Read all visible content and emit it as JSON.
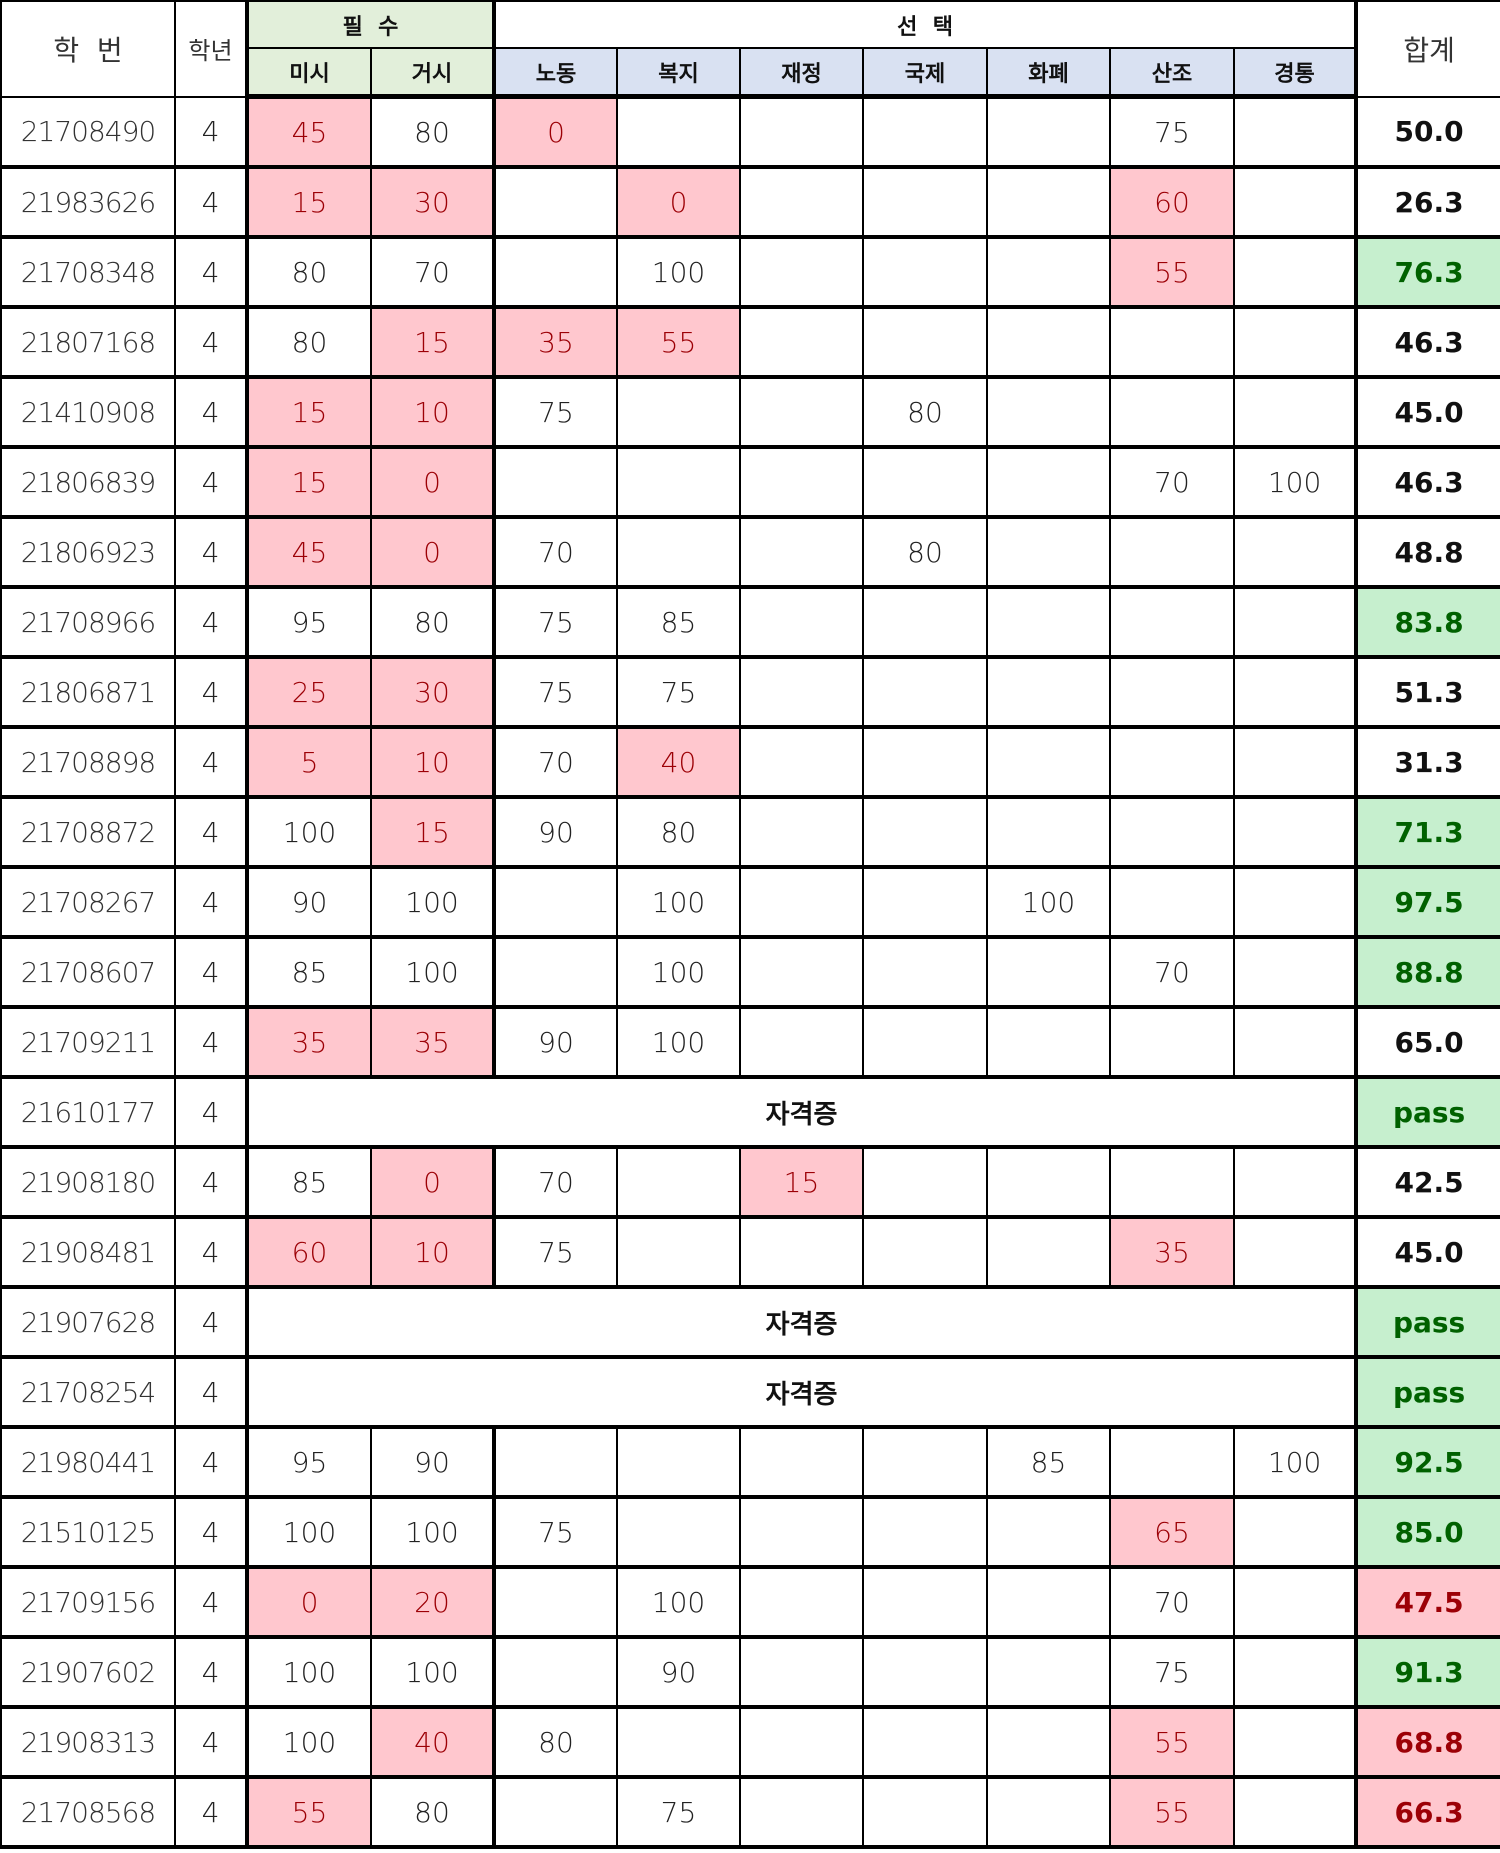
{
  "header": {
    "student_id": "학  번",
    "grade": "학년",
    "required_group": "필  수",
    "elective_group": "선  택",
    "total": "합계",
    "required_subjects": [
      "미시",
      "거시"
    ],
    "elective_subjects": [
      "노동",
      "복지",
      "재정",
      "국제",
      "화폐",
      "산조",
      "경통"
    ]
  },
  "colors": {
    "fail_fill": "#ffc7ce",
    "fail_text": "#9c0006",
    "pass_fill": "#c6efce",
    "pass_text": "#006100",
    "required_header": "#e2efda",
    "elective_header": "#d9e1f2"
  },
  "rows": [
    {
      "id": "21708490",
      "grade": "4",
      "scores": [
        "45",
        "80",
        "0",
        "",
        "",
        "",
        "",
        "75",
        ""
      ],
      "fail": [
        0,
        2
      ],
      "total": "50.0",
      "status": "plain"
    },
    {
      "id": "21983626",
      "grade": "4",
      "scores": [
        "15",
        "30",
        "",
        "0",
        "",
        "",
        "",
        "60",
        ""
      ],
      "fail": [
        0,
        1,
        3,
        7
      ],
      "total": "26.3",
      "status": "plain"
    },
    {
      "id": "21708348",
      "grade": "4",
      "scores": [
        "80",
        "70",
        "",
        "100",
        "",
        "",
        "",
        "55",
        ""
      ],
      "fail": [
        7
      ],
      "total": "76.3",
      "status": "good"
    },
    {
      "id": "21807168",
      "grade": "4",
      "scores": [
        "80",
        "15",
        "35",
        "55",
        "",
        "",
        "",
        "",
        ""
      ],
      "fail": [
        1,
        2,
        3
      ],
      "total": "46.3",
      "status": "plain"
    },
    {
      "id": "21410908",
      "grade": "4",
      "scores": [
        "15",
        "10",
        "75",
        "",
        "",
        "80",
        "",
        "",
        ""
      ],
      "fail": [
        0,
        1
      ],
      "total": "45.0",
      "status": "plain"
    },
    {
      "id": "21806839",
      "grade": "4",
      "scores": [
        "15",
        "0",
        "",
        "",
        "",
        "",
        "",
        "70",
        "100"
      ],
      "fail": [
        0,
        1
      ],
      "total": "46.3",
      "status": "plain"
    },
    {
      "id": "21806923",
      "grade": "4",
      "scores": [
        "45",
        "0",
        "70",
        "",
        "",
        "80",
        "",
        "",
        ""
      ],
      "fail": [
        0,
        1
      ],
      "total": "48.8",
      "status": "plain"
    },
    {
      "id": "21708966",
      "grade": "4",
      "scores": [
        "95",
        "80",
        "75",
        "85",
        "",
        "",
        "",
        "",
        ""
      ],
      "fail": [],
      "total": "83.8",
      "status": "good"
    },
    {
      "id": "21806871",
      "grade": "4",
      "scores": [
        "25",
        "30",
        "75",
        "75",
        "",
        "",
        "",
        "",
        ""
      ],
      "fail": [
        0,
        1
      ],
      "total": "51.3",
      "status": "plain"
    },
    {
      "id": "21708898",
      "grade": "4",
      "scores": [
        "5",
        "10",
        "70",
        "40",
        "",
        "",
        "",
        "",
        ""
      ],
      "fail": [
        0,
        1,
        3
      ],
      "total": "31.3",
      "status": "plain"
    },
    {
      "id": "21708872",
      "grade": "4",
      "scores": [
        "100",
        "15",
        "90",
        "80",
        "",
        "",
        "",
        "",
        ""
      ],
      "fail": [
        1
      ],
      "total": "71.3",
      "status": "good"
    },
    {
      "id": "21708267",
      "grade": "4",
      "scores": [
        "90",
        "100",
        "",
        "100",
        "",
        "",
        "100",
        "",
        ""
      ],
      "fail": [],
      "total": "97.5",
      "status": "good"
    },
    {
      "id": "21708607",
      "grade": "4",
      "scores": [
        "85",
        "100",
        "",
        "100",
        "",
        "",
        "",
        "70",
        ""
      ],
      "fail": [],
      "total": "88.8",
      "status": "good"
    },
    {
      "id": "21709211",
      "grade": "4",
      "scores": [
        "35",
        "35",
        "90",
        "100",
        "",
        "",
        "",
        "",
        ""
      ],
      "fail": [
        0,
        1
      ],
      "total": "65.0",
      "status": "plain"
    },
    {
      "id": "21610177",
      "grade": "4",
      "certificate": "자격증",
      "total": "pass",
      "status": "good"
    },
    {
      "id": "21908180",
      "grade": "4",
      "scores": [
        "85",
        "0",
        "70",
        "",
        "15",
        "",
        "",
        "",
        ""
      ],
      "fail": [
        1,
        4
      ],
      "total": "42.5",
      "status": "plain"
    },
    {
      "id": "21908481",
      "grade": "4",
      "scores": [
        "60",
        "10",
        "75",
        "",
        "",
        "",
        "",
        "35",
        ""
      ],
      "fail": [
        0,
        1,
        7
      ],
      "total": "45.0",
      "status": "plain"
    },
    {
      "id": "21907628",
      "grade": "4",
      "certificate": "자격증",
      "total": "pass",
      "status": "good"
    },
    {
      "id": "21708254",
      "grade": "4",
      "certificate": "자격증",
      "total": "pass",
      "status": "good"
    },
    {
      "id": "21980441",
      "grade": "4",
      "scores": [
        "95",
        "90",
        "",
        "",
        "",
        "",
        "85",
        "",
        "100"
      ],
      "fail": [],
      "total": "92.5",
      "status": "good"
    },
    {
      "id": "21510125",
      "grade": "4",
      "scores": [
        "100",
        "100",
        "75",
        "",
        "",
        "",
        "",
        "65",
        ""
      ],
      "fail": [
        7
      ],
      "total": "85.0",
      "status": "good"
    },
    {
      "id": "21709156",
      "grade": "4",
      "scores": [
        "0",
        "20",
        "",
        "100",
        "",
        "",
        "",
        "70",
        ""
      ],
      "fail": [
        0,
        1
      ],
      "total": "47.5",
      "status": "bad"
    },
    {
      "id": "21907602",
      "grade": "4",
      "scores": [
        "100",
        "100",
        "",
        "90",
        "",
        "",
        "",
        "75",
        ""
      ],
      "fail": [],
      "total": "91.3",
      "status": "good"
    },
    {
      "id": "21908313",
      "grade": "4",
      "scores": [
        "100",
        "40",
        "80",
        "",
        "",
        "",
        "",
        "55",
        ""
      ],
      "fail": [
        1,
        7
      ],
      "total": "68.8",
      "status": "bad"
    },
    {
      "id": "21708568",
      "grade": "4",
      "scores": [
        "55",
        "80",
        "",
        "75",
        "",
        "",
        "",
        "55",
        ""
      ],
      "fail": [
        0,
        7
      ],
      "total": "66.3",
      "status": "bad"
    }
  ]
}
